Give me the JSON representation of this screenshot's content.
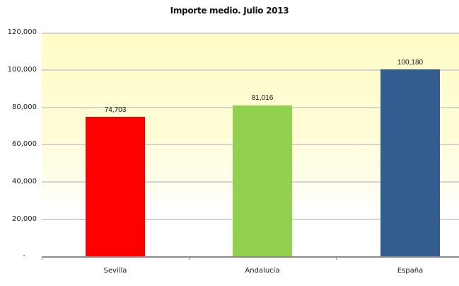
{
  "chart_data": {
    "type": "bar",
    "title": "Importe medio. Julio 2013",
    "categories": [
      "Sevilla",
      "Andalucía",
      "España"
    ],
    "values": [
      74703,
      81016,
      100180
    ],
    "value_labels": [
      "74,703",
      "81,016",
      "100,180"
    ],
    "colors": [
      "#ff0000",
      "#92d050",
      "#335c8f"
    ],
    "xlabel": "",
    "ylabel": "",
    "ylim": [
      0,
      120000
    ],
    "yticks": [
      0,
      20000,
      40000,
      60000,
      80000,
      100000,
      120000
    ],
    "ytick_labels": [
      "-",
      "20,000",
      "40,000",
      "60,000",
      "80,000",
      "100,000",
      "120,000"
    ],
    "grid": true,
    "legend": null,
    "plot_background": "#fffcc8"
  }
}
